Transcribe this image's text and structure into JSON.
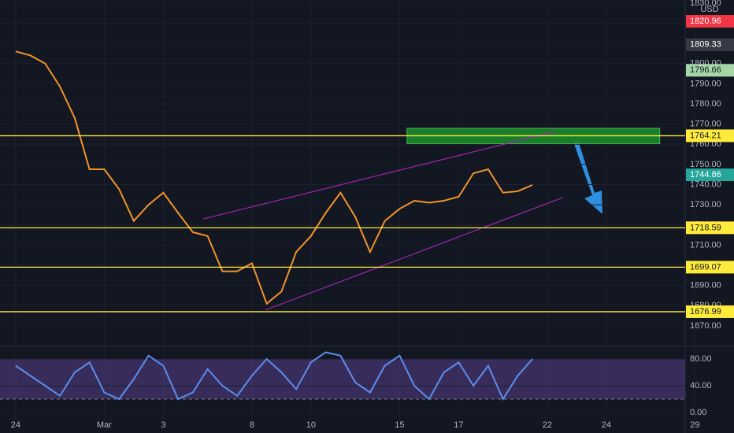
{
  "chart_data": [
    {
      "type": "line",
      "color": "#f0932b",
      "x": [
        0,
        0.5,
        1,
        1.5,
        2,
        2.5,
        3,
        3.5,
        4,
        4.5,
        5,
        5.5,
        6,
        6.5,
        7,
        7.5,
        8,
        8.5,
        9,
        9.5,
        10,
        10.5,
        11,
        11.5,
        12,
        12.5,
        13,
        13.5,
        14,
        14.5,
        15,
        15.5,
        16,
        16.5,
        17,
        17.5
      ],
      "values": [
        1806,
        1804,
        1800,
        1788.6,
        1773,
        1747.6,
        1747.6,
        1737.8,
        1722,
        1730,
        1736,
        1726,
        1716.4,
        1714.5,
        1697,
        1697,
        1701,
        1681,
        1687,
        1706.6,
        1714.5,
        1726,
        1736,
        1724,
        1706.6,
        1722,
        1728,
        1732,
        1731,
        1732,
        1734,
        1745.6,
        1747.6,
        1736,
        1736.7,
        1739.8
      ],
      "xlim": [
        -0.53,
        22.67
      ],
      "ylim": [
        1659.8,
        1831.5
      ],
      "xticks": [
        {
          "value": 0,
          "label": "24"
        },
        {
          "value": 3,
          "label": "Mar"
        },
        {
          "value": 5,
          "label": "3"
        },
        8,
        10,
        {
          "value": 13,
          "label": "15"
        },
        {
          "value": 15,
          "label": "17"
        },
        {
          "value": 18,
          "label": "22"
        },
        {
          "value": 20,
          "label": "24"
        },
        {
          "value": 23,
          "label": "29"
        }
      ],
      "yticks": [
        {
          "value": 1670,
          "label": "1670.00"
        },
        {
          "value": 1680,
          "label": "1680.00"
        },
        {
          "value": 1690,
          "label": "1690.00"
        },
        {
          "value": 1700,
          "label": "1700.00"
        },
        {
          "value": 1710,
          "label": "1710.00"
        },
        {
          "value": 1720,
          "label": "1720.00"
        },
        {
          "value": 1730,
          "label": "1730.00"
        },
        {
          "value": 1740,
          "label": "1740.00"
        },
        {
          "value": 1750,
          "label": "1750.00"
        },
        {
          "value": 1760,
          "label": "1760.00"
        },
        {
          "value": 1770,
          "label": "1770.00"
        },
        {
          "value": 1780,
          "label": "1780.00"
        },
        {
          "value": 1790,
          "label": "1790.00"
        },
        {
          "value": 1800,
          "label": "1800.00"
        },
        {
          "value": 1810,
          "label": "1810.00"
        },
        {
          "value": 1820,
          "label": "1820.00"
        },
        {
          "value": 1830,
          "label": "1830.00"
        }
      ],
      "currency": "USD",
      "levels": [
        {
          "value": 1820.96,
          "color": "#f23645",
          "text_color": "#ffffff",
          "line": false
        },
        {
          "value": 1809.33,
          "color": "#363a45",
          "text_color": "#ffffff",
          "line": false
        },
        {
          "value": 1796.66,
          "color": "#a5d6a7",
          "text_color": "#131722",
          "line": false
        },
        {
          "value": 1764.21,
          "color": "#ffeb3b",
          "text_color": "#131722",
          "line": true
        },
        {
          "value": 1744.86,
          "color": "#26a69a",
          "text_color": "#ffffff",
          "line": false
        },
        {
          "value": 1718.59,
          "color": "#ffeb3b",
          "text_color": "#131722",
          "line": true
        },
        {
          "value": 1699.07,
          "color": "#ffeb3b",
          "text_color": "#131722",
          "line": true
        },
        {
          "value": 1676.99,
          "color": "#ffeb3b",
          "text_color": "#131722",
          "line": true
        }
      ],
      "zone": {
        "x": [
          13.25,
          21.81
        ],
        "y": [
          1760.3,
          1767.9
        ],
        "color": "#1b8a2a"
      },
      "channel": {
        "color": "#9c27b0",
        "upper": {
          "x": [
            6.35,
            18.27
          ],
          "y": [
            1723,
            1766.3
          ]
        },
        "lower": {
          "x": [
            8.45,
            18.53
          ],
          "y": [
            1677.8,
            1733.6
          ]
        }
      }
    },
    {
      "type": "line",
      "color": "#5b8def",
      "x": [
        0,
        0.5,
        1,
        1.5,
        2,
        2.5,
        3,
        3.5,
        4,
        4.5,
        5,
        5.5,
        6,
        6.5,
        7,
        7.5,
        8,
        8.5,
        9,
        9.5,
        10,
        10.5,
        11,
        11.5,
        12,
        12.5,
        13,
        13.5,
        14,
        14.5,
        15,
        15.5,
        16,
        16.5,
        17,
        17.5
      ],
      "values": [
        70,
        55,
        40,
        25,
        60,
        75,
        30,
        20,
        50,
        85,
        70,
        20,
        30,
        65,
        40,
        25,
        55,
        80,
        60,
        35,
        75,
        90,
        85,
        45,
        30,
        70,
        85,
        40,
        20,
        60,
        75,
        40,
        70,
        20,
        55,
        80
      ],
      "xlim": [
        -0.53,
        22.67
      ],
      "ylim": [
        -12.9,
        98.8
      ],
      "band": [
        20,
        80
      ],
      "band_color": "#7e57c2",
      "yticks": [
        {
          "value": 0,
          "label": "0.00"
        },
        {
          "value": 40,
          "label": "40.00"
        },
        {
          "value": 80,
          "label": "80.00"
        }
      ]
    }
  ]
}
